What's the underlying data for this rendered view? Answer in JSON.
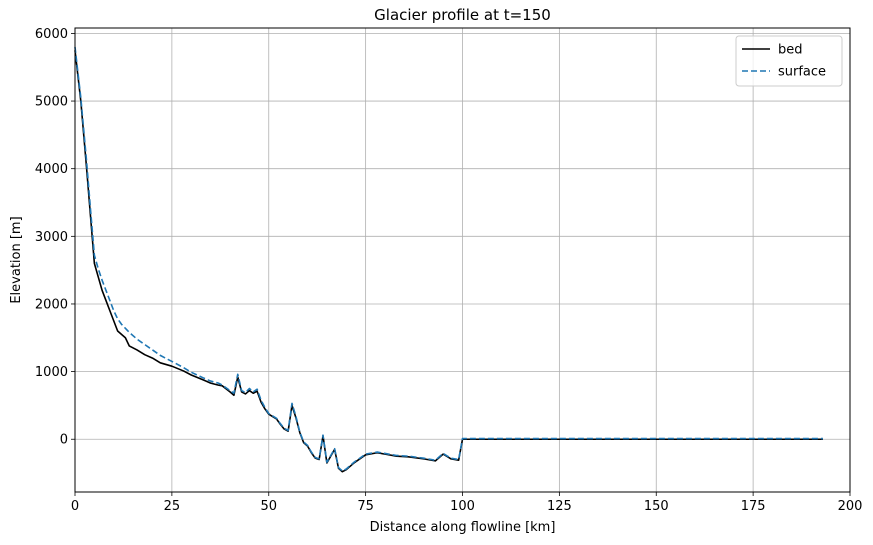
{
  "chart_data": {
    "type": "line",
    "title": "Glacier profile at t=150",
    "xlabel": "Distance along flowline [km]",
    "ylabel": "Elevation [m]",
    "xlim": [
      0,
      200
    ],
    "ylim": [
      -780,
      6080
    ],
    "xticks": [
      0,
      25,
      50,
      75,
      100,
      125,
      150,
      175,
      200
    ],
    "yticks": [
      0,
      1000,
      2000,
      3000,
      4000,
      5000,
      6000
    ],
    "grid": true,
    "legend_position": "top-right",
    "series": [
      {
        "name": "bed",
        "color": "#000000",
        "style": "solid",
        "x": [
          0,
          1.5,
          3,
          4,
          5,
          6,
          7,
          8,
          9,
          10,
          11,
          12,
          13,
          14,
          16,
          18,
          20,
          22,
          25,
          28,
          30,
          33,
          35,
          37,
          38,
          40,
          41,
          42,
          43,
          44,
          45,
          46,
          47,
          48,
          49,
          50,
          52,
          53,
          54,
          55,
          56,
          57,
          58,
          59,
          60,
          61,
          62,
          63,
          64,
          65,
          66,
          67,
          68,
          69,
          70,
          72,
          75,
          78,
          80,
          83,
          86,
          90,
          93,
          95,
          97,
          99,
          100,
          101,
          110,
          120,
          130,
          140,
          150,
          160,
          170,
          180,
          193
        ],
        "y": [
          5750,
          5000,
          4000,
          3300,
          2600,
          2400,
          2200,
          2050,
          1900,
          1750,
          1600,
          1550,
          1500,
          1380,
          1320,
          1250,
          1200,
          1130,
          1080,
          1010,
          950,
          880,
          830,
          800,
          790,
          700,
          650,
          920,
          700,
          670,
          720,
          680,
          710,
          550,
          450,
          370,
          300,
          220,
          150,
          120,
          500,
          320,
          100,
          -50,
          -100,
          -200,
          -280,
          -300,
          50,
          -350,
          -250,
          -150,
          -430,
          -480,
          -450,
          -350,
          -230,
          -200,
          -220,
          -250,
          -260,
          -290,
          -320,
          -220,
          -290,
          -310,
          0,
          0,
          0,
          0,
          0,
          0,
          0,
          0,
          0,
          0,
          0
        ]
      },
      {
        "name": "surface",
        "color": "#1f77b4",
        "style": "dashed",
        "x": [
          0,
          1.5,
          3,
          4,
          5,
          6,
          7,
          8,
          9,
          10,
          11,
          12,
          13,
          14,
          16,
          18,
          20,
          22,
          25,
          28,
          30,
          33,
          35,
          37,
          38,
          40,
          41,
          42,
          43,
          44,
          45,
          46,
          47,
          48,
          49,
          50,
          52,
          53,
          54,
          55,
          56,
          57,
          58,
          59,
          60,
          61,
          62,
          63,
          64,
          65,
          66,
          67,
          68,
          69,
          70,
          72,
          75,
          78,
          80,
          83,
          86,
          90,
          93,
          95,
          97,
          99,
          100,
          101,
          110,
          120,
          130,
          140,
          150,
          160,
          170,
          180,
          193
        ],
        "y": [
          5800,
          5050,
          4100,
          3400,
          2720,
          2520,
          2350,
          2200,
          2050,
          1900,
          1780,
          1700,
          1640,
          1580,
          1480,
          1400,
          1320,
          1240,
          1150,
          1060,
          990,
          910,
          860,
          830,
          800,
          720,
          680,
          960,
          720,
          690,
          750,
          700,
          740,
          580,
          470,
          380,
          310,
          230,
          160,
          130,
          530,
          340,
          110,
          -40,
          -90,
          -190,
          -270,
          -290,
          60,
          -340,
          -240,
          -140,
          -420,
          -470,
          -440,
          -340,
          -220,
          -190,
          -210,
          -240,
          -250,
          -280,
          -310,
          -210,
          -280,
          -300,
          10,
          10,
          10,
          10,
          10,
          10,
          10,
          10,
          10,
          10,
          10
        ]
      }
    ]
  }
}
